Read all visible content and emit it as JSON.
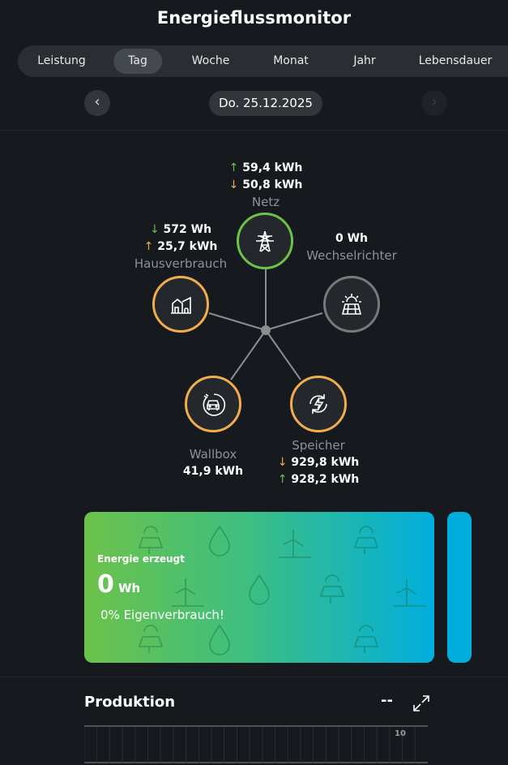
{
  "header": {
    "title": "Energieflussmonitor"
  },
  "tabs": [
    {
      "label": "Leistung"
    },
    {
      "label": "Tag",
      "active": true
    },
    {
      "label": "Woche"
    },
    {
      "label": "Monat"
    },
    {
      "label": "Jahr"
    },
    {
      "label": "Lebensdauer"
    }
  ],
  "date_nav": {
    "prev": "‹",
    "date": "Do. 25.12.2025",
    "next": "›"
  },
  "flow": {
    "netz": {
      "label": "Netz",
      "up": "59,4  kWh",
      "down": "50,8  kWh",
      "ring": "#6cc24a",
      "icon": "power-tower-icon"
    },
    "haus": {
      "label": "Hausverbrauch",
      "down": "572  Wh",
      "up": "25,7  kWh",
      "ring": "#f0ad4e",
      "icon": "house-icon"
    },
    "wechselrichter": {
      "label": "Wechselrichter",
      "value": "0  Wh",
      "ring": "#77797c",
      "icon": "solar-panel-icon"
    },
    "wallbox": {
      "label": "Wallbox",
      "value": "41,9  kWh",
      "ring": "#f0ad4e",
      "icon": "ev-charger-icon"
    },
    "speicher": {
      "label": "Speicher",
      "down": "929,8  kWh",
      "up": "928,2  kWh",
      "ring": "#f0ad4e",
      "icon": "battery-cycle-icon"
    },
    "arrow_up": "↑",
    "arrow_down": "↓"
  },
  "card": {
    "title": "Energie erzeugt",
    "value": "0",
    "unit": "Wh",
    "subtitle": "0% Eigenverbrauch!"
  },
  "production": {
    "title": "Produktion",
    "value": "--",
    "axis_tick": "10"
  }
}
